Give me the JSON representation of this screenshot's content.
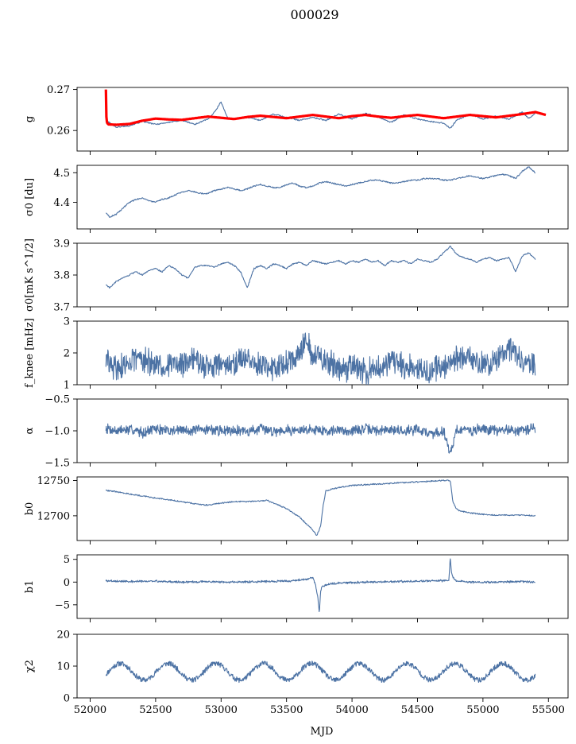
{
  "figure": {
    "title": "000029",
    "xlabel": "MJD"
  },
  "colors": {
    "series": "#4c72a4",
    "model": "#ff0000",
    "axis": "#000000"
  },
  "chart_data": [
    {
      "type": "line",
      "id": "g",
      "ylabel": "g",
      "xlim": [
        51900,
        55650
      ],
      "ylim": [
        0.255,
        0.2705
      ],
      "yticks": [
        0.26,
        0.27
      ],
      "yticklabels": [
        "0.26",
        "0.27"
      ],
      "series": [
        {
          "role": "data",
          "x": [
            52120,
            52200,
            52300,
            52400,
            52500,
            52600,
            52700,
            52800,
            52900,
            52950,
            53000,
            53050,
            53100,
            53200,
            53300,
            53400,
            53500,
            53600,
            53700,
            53800,
            53900,
            54000,
            54100,
            54200,
            54300,
            54400,
            54500,
            54600,
            54700,
            54750,
            54800,
            54900,
            55000,
            55100,
            55200,
            55300,
            55350,
            55400
          ],
          "y": [
            0.2625,
            0.2608,
            0.2612,
            0.2622,
            0.2615,
            0.262,
            0.2625,
            0.2615,
            0.2628,
            0.2645,
            0.267,
            0.263,
            0.2628,
            0.2632,
            0.2625,
            0.264,
            0.2632,
            0.2625,
            0.2632,
            0.2625,
            0.264,
            0.2628,
            0.2642,
            0.2633,
            0.262,
            0.2638,
            0.2628,
            0.2622,
            0.2618,
            0.2605,
            0.2625,
            0.264,
            0.2628,
            0.2635,
            0.2628,
            0.2645,
            0.263,
            0.2642
          ]
        },
        {
          "role": "model",
          "x": [
            52120,
            52122,
            52125,
            52130,
            52140,
            52200,
            52300,
            52400,
            52500,
            52600,
            52700,
            52800,
            52900,
            53000,
            53100,
            53200,
            53300,
            53400,
            53500,
            53600,
            53700,
            53800,
            53900,
            54000,
            54100,
            54200,
            54300,
            54400,
            54500,
            54600,
            54700,
            54800,
            54900,
            55000,
            55100,
            55200,
            55300,
            55400,
            55480
          ],
          "y": [
            0.27,
            0.265,
            0.2625,
            0.2618,
            0.2615,
            0.2614,
            0.2616,
            0.2624,
            0.2629,
            0.2627,
            0.2626,
            0.263,
            0.2634,
            0.2631,
            0.2628,
            0.2633,
            0.2636,
            0.2633,
            0.263,
            0.2634,
            0.2638,
            0.2634,
            0.263,
            0.2635,
            0.2638,
            0.2634,
            0.2631,
            0.2635,
            0.2638,
            0.2634,
            0.263,
            0.2634,
            0.2638,
            0.2635,
            0.2632,
            0.2636,
            0.264,
            0.2645,
            0.2638
          ]
        }
      ]
    },
    {
      "type": "line",
      "id": "sigma0-du",
      "ylabel": "σ0 [du]",
      "xlim": [
        51900,
        55650
      ],
      "ylim": [
        4.31,
        4.525
      ],
      "yticks": [
        4.4,
        4.5
      ],
      "yticklabels": [
        "4.4",
        "4.5"
      ],
      "series": [
        {
          "role": "data",
          "x": [
            52120,
            52150,
            52200,
            52250,
            52300,
            52350,
            52400,
            52450,
            52500,
            52550,
            52600,
            52650,
            52700,
            52750,
            52800,
            52850,
            52900,
            52950,
            53000,
            53050,
            53100,
            53150,
            53200,
            53250,
            53300,
            53350,
            53400,
            53450,
            53500,
            53550,
            53600,
            53650,
            53700,
            53750,
            53800,
            53850,
            53900,
            53950,
            54000,
            54050,
            54100,
            54150,
            54200,
            54250,
            54300,
            54350,
            54400,
            54450,
            54500,
            54550,
            54600,
            54650,
            54700,
            54750,
            54800,
            54850,
            54900,
            54950,
            55000,
            55050,
            55100,
            55150,
            55200,
            55250,
            55300,
            55350,
            55400
          ],
          "y": [
            4.365,
            4.35,
            4.36,
            4.38,
            4.4,
            4.41,
            4.415,
            4.405,
            4.4,
            4.41,
            4.415,
            4.425,
            4.435,
            4.44,
            4.435,
            4.43,
            4.43,
            4.44,
            4.445,
            4.45,
            4.445,
            4.44,
            4.445,
            4.455,
            4.46,
            4.455,
            4.45,
            4.45,
            4.46,
            4.465,
            4.455,
            4.45,
            4.455,
            4.465,
            4.47,
            4.465,
            4.46,
            4.455,
            4.46,
            4.465,
            4.47,
            4.475,
            4.475,
            4.47,
            4.465,
            4.465,
            4.47,
            4.475,
            4.475,
            4.48,
            4.48,
            4.48,
            4.475,
            4.475,
            4.48,
            4.485,
            4.49,
            4.485,
            4.48,
            4.485,
            4.49,
            4.495,
            4.49,
            4.48,
            4.505,
            4.52,
            4.5
          ]
        }
      ]
    },
    {
      "type": "line",
      "id": "sigma0-mks",
      "ylabel": "σ0[mK s^1/2]",
      "xlim": [
        51900,
        55650
      ],
      "ylim": [
        3.7,
        3.9
      ],
      "yticks": [
        3.7,
        3.8,
        3.9
      ],
      "yticklabels": [
        "3.7",
        "3.8",
        "3.9"
      ],
      "series": [
        {
          "role": "data",
          "x": [
            52120,
            52150,
            52200,
            52250,
            52300,
            52350,
            52400,
            52450,
            52500,
            52550,
            52600,
            52650,
            52700,
            52750,
            52800,
            52850,
            52900,
            52950,
            53000,
            53050,
            53100,
            53150,
            53200,
            53250,
            53300,
            53350,
            53400,
            53450,
            53500,
            53550,
            53600,
            53650,
            53700,
            53750,
            53800,
            53850,
            53900,
            53950,
            54000,
            54050,
            54100,
            54150,
            54200,
            54250,
            54300,
            54350,
            54400,
            54450,
            54500,
            54550,
            54600,
            54650,
            54700,
            54750,
            54800,
            54850,
            54900,
            54950,
            55000,
            55050,
            55100,
            55150,
            55200,
            55250,
            55300,
            55350,
            55400
          ],
          "y": [
            3.77,
            3.76,
            3.78,
            3.79,
            3.8,
            3.81,
            3.8,
            3.815,
            3.82,
            3.81,
            3.83,
            3.82,
            3.8,
            3.79,
            3.825,
            3.83,
            3.83,
            3.825,
            3.835,
            3.84,
            3.83,
            3.81,
            3.76,
            3.82,
            3.83,
            3.82,
            3.835,
            3.83,
            3.82,
            3.835,
            3.84,
            3.83,
            3.845,
            3.84,
            3.835,
            3.84,
            3.845,
            3.835,
            3.845,
            3.84,
            3.85,
            3.84,
            3.845,
            3.83,
            3.845,
            3.84,
            3.845,
            3.835,
            3.85,
            3.845,
            3.84,
            3.85,
            3.87,
            3.89,
            3.865,
            3.855,
            3.85,
            3.84,
            3.85,
            3.855,
            3.845,
            3.85,
            3.855,
            3.81,
            3.86,
            3.87,
            3.85
          ]
        }
      ]
    },
    {
      "type": "line",
      "id": "fknee",
      "ylabel": "f_knee [mHz]",
      "xlim": [
        51900,
        55650
      ],
      "ylim": [
        1,
        3
      ],
      "yticks": [
        1,
        2,
        3
      ],
      "yticklabels": [
        "1",
        "2",
        "3"
      ],
      "series": [
        {
          "role": "data",
          "noise": {
            "base": 1.6,
            "amplitude": 0.45,
            "seed": 29
          },
          "x": [
            52120,
            52200,
            52300,
            52400,
            52500,
            52600,
            52700,
            52800,
            52900,
            53000,
            53100,
            53200,
            53300,
            53400,
            53500,
            53600,
            53650,
            53700,
            53750,
            53800,
            53900,
            54000,
            54100,
            54200,
            54300,
            54400,
            54500,
            54600,
            54700,
            54800,
            54900,
            55000,
            55100,
            55200,
            55300,
            55400
          ],
          "y": [
            1.8,
            1.5,
            1.7,
            1.9,
            1.5,
            1.7,
            1.6,
            1.8,
            1.5,
            1.7,
            1.6,
            1.9,
            1.5,
            1.6,
            1.7,
            2.0,
            2.6,
            1.8,
            2.0,
            1.7,
            1.5,
            1.6,
            1.4,
            1.5,
            1.7,
            1.6,
            1.5,
            1.4,
            1.6,
            1.8,
            1.9,
            1.6,
            1.7,
            2.2,
            1.7,
            1.6
          ]
        }
      ]
    },
    {
      "type": "line",
      "id": "alpha",
      "ylabel": "α",
      "xlim": [
        51900,
        55650
      ],
      "ylim": [
        -1.5,
        -0.5
      ],
      "yticks": [
        -1.5,
        -1.0,
        -0.5
      ],
      "yticklabels": [
        "−1.5",
        "−1.0",
        "−0.5"
      ],
      "series": [
        {
          "role": "data",
          "noise": {
            "base": -0.98,
            "amplitude": 0.09,
            "seed": 7
          },
          "x": [
            52120,
            52200,
            52300,
            52400,
            52500,
            52600,
            52700,
            52800,
            52900,
            53000,
            53100,
            53200,
            53300,
            53400,
            53500,
            53600,
            53700,
            53800,
            53900,
            54000,
            54100,
            54200,
            54300,
            54400,
            54500,
            54600,
            54700,
            54750,
            54800,
            54900,
            55000,
            55100,
            55200,
            55300,
            55400
          ],
          "y": [
            -0.95,
            -1.0,
            -0.98,
            -1.02,
            -0.97,
            -1.0,
            -0.98,
            -1.0,
            -0.97,
            -1.0,
            -0.98,
            -1.01,
            -0.97,
            -1.0,
            -0.98,
            -1.0,
            -0.97,
            -1.0,
            -0.99,
            -1.0,
            -0.97,
            -1.0,
            -0.98,
            -1.0,
            -0.97,
            -1.05,
            -1.0,
            -1.35,
            -0.98,
            -1.0,
            -0.97,
            -1.0,
            -0.98,
            -1.0,
            -0.95
          ]
        }
      ]
    },
    {
      "type": "line",
      "id": "b0",
      "ylabel": "b0",
      "xlim": [
        51900,
        55650
      ],
      "ylim": [
        12665,
        12755
      ],
      "yticks": [
        12700,
        12750
      ],
      "yticklabels": [
        "12700",
        "12750"
      ],
      "series": [
        {
          "role": "data",
          "x": [
            52120,
            52200,
            52300,
            52400,
            52500,
            52600,
            52700,
            52800,
            52900,
            53000,
            53100,
            53200,
            53300,
            53350,
            53400,
            53500,
            53600,
            53700,
            53730,
            53760,
            53780,
            53800,
            53850,
            53900,
            54000,
            54100,
            54200,
            54300,
            54400,
            54500,
            54600,
            54700,
            54750,
            54770,
            54790,
            54820,
            54900,
            55000,
            55100,
            55200,
            55300,
            55400
          ],
          "y": [
            12736,
            12734,
            12731,
            12728,
            12725,
            12723,
            12720,
            12717,
            12715,
            12718,
            12720,
            12720,
            12721,
            12722,
            12718,
            12710,
            12698,
            12680,
            12672,
            12685,
            12715,
            12735,
            12738,
            12740,
            12743,
            12744,
            12745,
            12746,
            12747,
            12748,
            12749,
            12750,
            12750,
            12720,
            12712,
            12707,
            12704,
            12702,
            12701,
            12701,
            12701,
            12700
          ]
        }
      ]
    },
    {
      "type": "line",
      "id": "b1",
      "ylabel": "b1",
      "xlim": [
        51900,
        55650
      ],
      "ylim": [
        -8,
        6
      ],
      "yticks": [
        -5,
        0,
        5
      ],
      "yticklabels": [
        "−5",
        "0",
        "5"
      ],
      "series": [
        {
          "role": "data",
          "noise": {
            "base": 0.0,
            "amplitude": 0.25,
            "seed": 3
          },
          "x": [
            52120,
            52300,
            52500,
            52700,
            52900,
            53100,
            53300,
            53500,
            53650,
            53700,
            53720,
            53740,
            53750,
            53760,
            53770,
            53800,
            53900,
            54100,
            54300,
            54500,
            54700,
            54740,
            54750,
            54760,
            54770,
            54800,
            54900,
            55100,
            55300,
            55400
          ],
          "y": [
            0.3,
            0.1,
            0.2,
            0.0,
            0.1,
            0.0,
            0.1,
            0.2,
            0.6,
            1.0,
            -0.5,
            -3.5,
            -7.0,
            -2.0,
            -1.0,
            -0.6,
            -0.2,
            0.0,
            0.1,
            0.2,
            0.3,
            0.5,
            5.5,
            2.0,
            1.0,
            0.3,
            0.0,
            0.0,
            0.1,
            0.0
          ]
        }
      ]
    },
    {
      "type": "line",
      "id": "chi2",
      "ylabel": "χ2",
      "xlim": [
        51900,
        55650
      ],
      "ylim": [
        0,
        20
      ],
      "yticks": [
        0,
        10,
        20
      ],
      "yticklabels": [
        "0",
        "10",
        "20"
      ],
      "series": [
        {
          "role": "data",
          "seasonal": {
            "mean": 8.2,
            "amplitude": 2.6,
            "period_days": 365,
            "phase_days": 52230,
            "noise": 0.8,
            "seed": 11
          },
          "x": [
            52120,
            52230,
            52410,
            52595,
            52775,
            52960,
            53140,
            53325,
            53505,
            53690,
            53870,
            54055,
            54235,
            54420,
            54600,
            54785,
            54965,
            55150,
            55330,
            55400
          ],
          "y": [
            7.0,
            10.8,
            5.6,
            10.8,
            5.6,
            10.8,
            5.6,
            11.0,
            5.6,
            10.8,
            5.4,
            10.8,
            5.6,
            11.2,
            5.6,
            11.5,
            5.6,
            11.0,
            5.8,
            10.5
          ]
        }
      ]
    }
  ],
  "xaxis": {
    "ticks": [
      52000,
      52500,
      53000,
      53500,
      54000,
      54500,
      55000,
      55500
    ],
    "ticklabels": [
      "52000",
      "52500",
      "53000",
      "53500",
      "54000",
      "54500",
      "55000",
      "55500"
    ]
  }
}
